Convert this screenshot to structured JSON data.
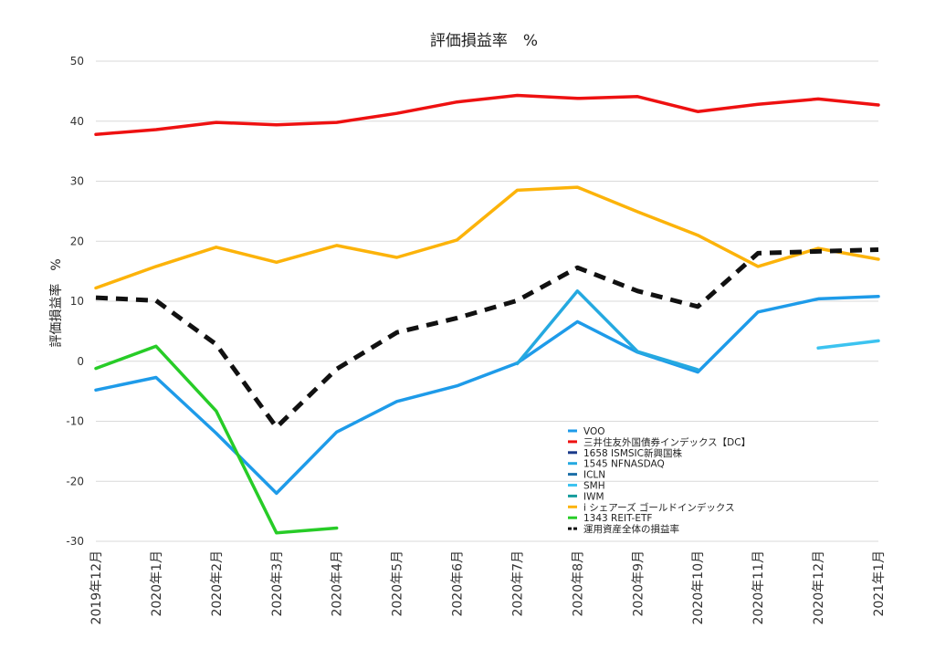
{
  "chart_data": {
    "type": "line",
    "title": "評価損益率　%",
    "ylabel": "評価損益率　%",
    "xlabel": "",
    "ylim": [
      -30,
      50
    ],
    "yticks": [
      50,
      40,
      30,
      20,
      10,
      0,
      -10,
      -20,
      -30
    ],
    "grid": true,
    "legend_position": "bottom-right",
    "categories": [
      "2019年12月",
      "2020年1月",
      "2020年2月",
      "2020年3月",
      "2020年4月",
      "2020年5月",
      "2020年6月",
      "2020年7月",
      "2020年8月",
      "2020年9月",
      "2020年10月",
      "2020年11月",
      "2020年12月",
      "2021年1月"
    ],
    "series": [
      {
        "name": "VOO",
        "color": "#1e9be9",
        "dash": false,
        "values": [
          -4.8,
          -2.7,
          -12.0,
          -22.0,
          -11.8,
          -6.7,
          -4.1,
          -0.3,
          6.6,
          1.5,
          -1.8,
          8.2,
          10.4,
          10.8
        ]
      },
      {
        "name": "三井住友外国債券インデックス【DC】",
        "color": "#ee1111",
        "dash": false,
        "values": [
          37.8,
          38.6,
          39.8,
          39.4,
          39.8,
          41.3,
          43.2,
          44.3,
          43.8,
          44.1,
          41.6,
          42.8,
          43.7,
          42.7
        ]
      },
      {
        "name": "1658 ISMSIC新興国株",
        "color": "#1a3a8a",
        "dash": false,
        "values": [
          null,
          null,
          null,
          null,
          null,
          null,
          null,
          null,
          null,
          null,
          null,
          null,
          null,
          null
        ]
      },
      {
        "name": "1545 NFNASDAQ",
        "color": "#25a9e0",
        "dash": false,
        "values": [
          null,
          null,
          null,
          null,
          null,
          null,
          null,
          -0.4,
          11.7,
          1.6,
          -1.4,
          null,
          null,
          null
        ]
      },
      {
        "name": "ICLN",
        "color": "#1c6fa8",
        "dash": false,
        "values": [
          null,
          null,
          null,
          null,
          null,
          null,
          null,
          null,
          null,
          null,
          null,
          null,
          null,
          null
        ]
      },
      {
        "name": "SMH",
        "color": "#3cc3f0",
        "dash": false,
        "values": [
          null,
          null,
          null,
          null,
          null,
          null,
          null,
          null,
          null,
          null,
          null,
          null,
          2.2,
          3.4
        ]
      },
      {
        "name": "IWM",
        "color": "#169c9c",
        "dash": false,
        "values": [
          null,
          null,
          null,
          null,
          null,
          null,
          null,
          null,
          null,
          null,
          null,
          null,
          null,
          null
        ]
      },
      {
        "name": "i シェアーズ ゴールドインデックス",
        "color": "#fcb30a",
        "dash": false,
        "values": [
          12.2,
          15.8,
          19.0,
          16.5,
          19.3,
          17.3,
          20.2,
          28.5,
          29.0,
          24.9,
          21.0,
          15.8,
          18.8,
          17.0
        ]
      },
      {
        "name": "1343 REIT-ETF",
        "color": "#27cc27",
        "dash": false,
        "values": [
          -1.2,
          2.5,
          -8.3,
          -28.6,
          -27.8,
          null,
          null,
          null,
          null,
          null,
          null,
          null,
          null,
          null
        ]
      },
      {
        "name": "運用資産全体の損益率",
        "color": "#111111",
        "dash": true,
        "values": [
          10.6,
          10.1,
          2.8,
          -11.0,
          -1.3,
          4.8,
          7.2,
          10.1,
          15.6,
          11.7,
          9.1,
          18.0,
          18.3,
          18.6
        ]
      }
    ]
  }
}
